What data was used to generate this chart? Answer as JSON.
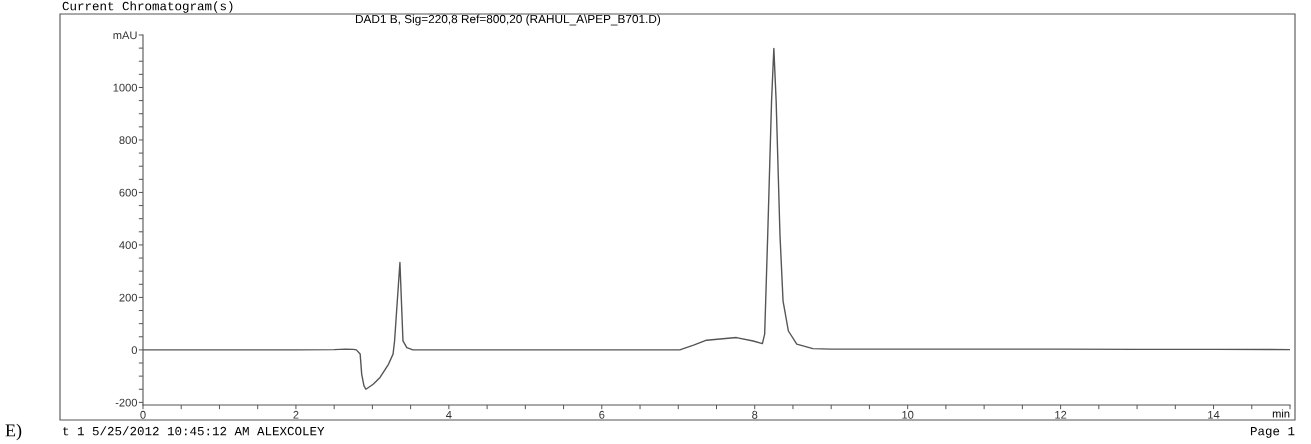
{
  "chart_data": {
    "type": "line",
    "title": "DAD1 B, Sig=220,8 Ref=800,20 (RAHUL_A\\PEP_B701.D)",
    "xlabel": "min",
    "annotations": [
      "Current Chromatogram(s)",
      "E)",
      "t 1 5/25/2012 10:45:12 AM ALEXCOLEY",
      "Page 1"
    ],
    "series": [
      {
        "color": "#555555",
        "x": [
          0,
          1,
          2,
          2.5,
          2.65,
          2.75,
          2.79,
          2.84,
          2.86,
          2.89,
          2.915,
          3.01,
          3.1,
          3.21,
          3.27,
          3.29,
          3.36,
          3.4,
          3.45,
          3.53,
          4,
          5,
          6,
          7,
          7.02,
          7.2,
          7.37,
          7.76,
          7.98,
          8.1,
          8.13,
          8.17,
          8.22,
          8.25,
          8.28,
          8.33,
          8.37,
          8.44,
          8.55,
          8.76,
          9,
          10,
          11,
          12,
          13,
          14,
          15
        ],
        "values": [
          0,
          0,
          0,
          1,
          3,
          2,
          0,
          -16,
          -93,
          -137,
          -150,
          -131,
          -105,
          -55,
          -16,
          34,
          333,
          34,
          9,
          0,
          0,
          0,
          0,
          0,
          0,
          18,
          37,
          47,
          34,
          24,
          60,
          440,
          949,
          1149,
          949,
          440,
          187,
          72,
          22,
          5,
          3,
          3,
          3,
          3,
          2,
          2,
          1
        ]
      }
    ],
    "xlim": [
      0,
      15
    ],
    "ylim": [
      -210,
      1200
    ],
    "xticks": [
      0,
      {
        "value": 0.5,
        "label": null
      },
      2,
      {
        "value": 1,
        "label": null
      },
      {
        "value": 1.5,
        "label": null
      },
      {
        "value": 2.5,
        "label": null
      },
      {
        "value": 3,
        "label": null
      },
      {
        "value": 3.5,
        "label": null
      },
      4,
      {
        "value": 4.5,
        "label": null
      },
      {
        "value": 5,
        "label": null
      },
      {
        "value": 5.5,
        "label": null
      },
      6,
      {
        "value": 6.5,
        "label": null
      },
      {
        "value": 7,
        "label": null
      },
      {
        "value": 7.5,
        "label": null
      },
      8,
      {
        "value": 8.5,
        "label": null
      },
      {
        "value": 9,
        "label": null
      },
      {
        "value": 9.5,
        "label": null
      },
      10,
      {
        "value": 10.5,
        "label": null
      },
      {
        "value": 11,
        "label": null
      },
      {
        "value": 11.5,
        "label": null
      },
      12,
      {
        "value": 12.5,
        "label": null
      },
      {
        "value": 13,
        "label": null
      },
      {
        "value": 13.5,
        "label": null
      },
      14,
      {
        "value": 14.5,
        "label": null
      },
      {
        "value": 15,
        "label": null
      }
    ],
    "yticks": [
      -200,
      {
        "value": -150,
        "label": null
      },
      {
        "value": -100,
        "label": null
      },
      {
        "value": -50,
        "label": null
      },
      0,
      {
        "value": 50,
        "label": null
      },
      {
        "value": 100,
        "label": null
      },
      {
        "value": 150,
        "label": null
      },
      200,
      {
        "value": 250,
        "label": null
      },
      {
        "value": 300,
        "label": null
      },
      {
        "value": 350,
        "label": null
      },
      400,
      {
        "value": 450,
        "label": null
      },
      {
        "value": 500,
        "label": null
      },
      {
        "value": 550,
        "label": null
      },
      600,
      {
        "value": 650,
        "label": null
      },
      {
        "value": 700,
        "label": null
      },
      {
        "value": 750,
        "label": null
      },
      800,
      {
        "value": 850,
        "label": null
      },
      {
        "value": 900,
        "label": null
      },
      {
        "value": 950,
        "label": null
      },
      1000,
      {
        "value": 1050,
        "label": null
      },
      {
        "value": 1100,
        "label": null
      },
      {
        "value": 1150,
        "label": null
      },
      {
        "value": 1200,
        "label": "mAU"
      }
    ],
    "grid": false,
    "legend": false,
    "marker": "none",
    "line_style": "solid"
  }
}
